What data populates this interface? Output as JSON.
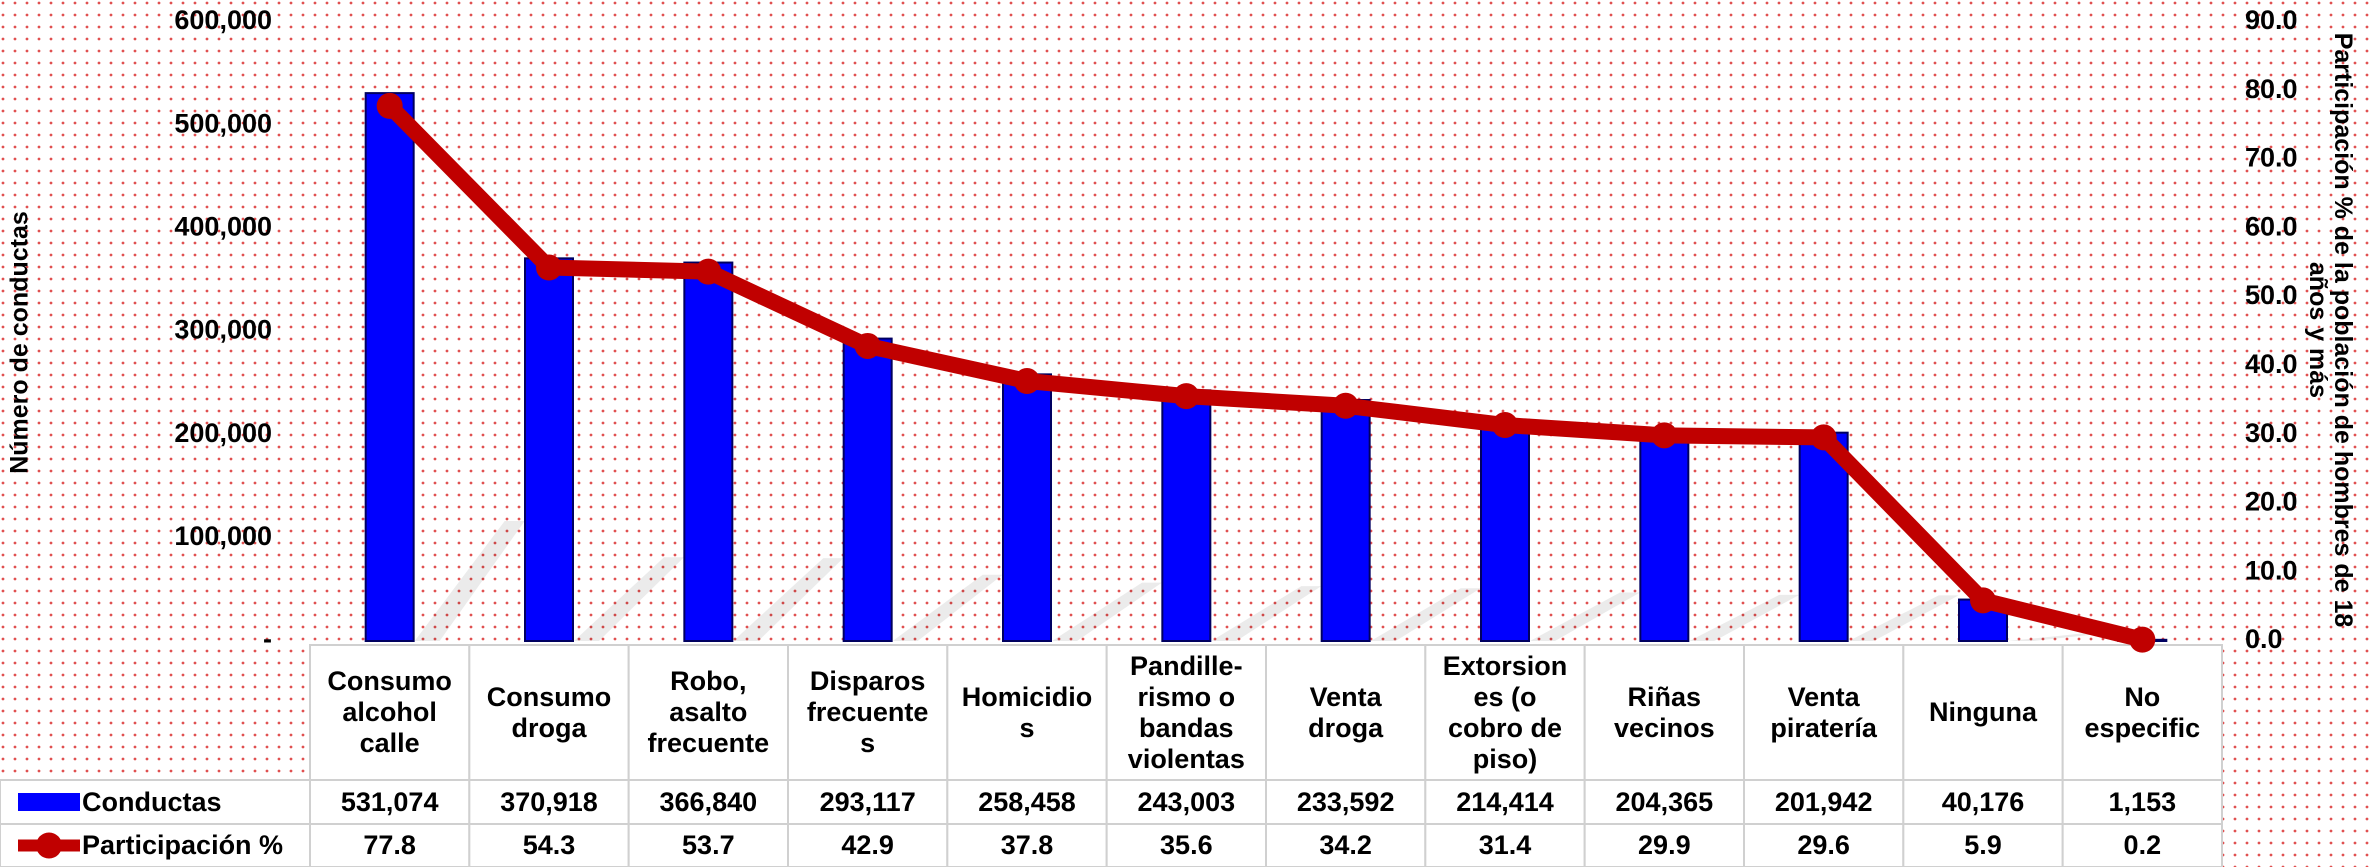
{
  "chart_data": {
    "type": "bar-line",
    "ylabel": "Número de conductas",
    "y2label": "Participación % de la población de hombres de 18\naños y más",
    "categories": [
      "Consumo\nalcohol\ncalle",
      "Consumo\ndroga",
      "Robo,\nasalto\nfrecuente",
      "Disparos\nfrecuente\ns",
      "Homicidio\ns",
      "Pandille-\nrismo o\nbandas\nviolentas",
      "Venta\ndroga",
      "Extorsion\nes (o\ncobro de\npiso)",
      "Riñas\nvecinos",
      "Venta\npiratería",
      "Ninguna",
      "No\nespecific"
    ],
    "series": [
      {
        "name": "Conductas",
        "type": "bar",
        "color": "#0000ff",
        "values": [
          531074,
          370918,
          366840,
          293117,
          258458,
          243003,
          233592,
          214414,
          204365,
          201942,
          40176,
          1153
        ],
        "value_labels": [
          "531,074",
          "370,918",
          "366,840",
          "293,117",
          "258,458",
          "243,003",
          "233,592",
          "214,414",
          "204,365",
          "201,942",
          "40,176",
          "1,153"
        ]
      },
      {
        "name": "Participación %",
        "type": "line",
        "axis": "y2",
        "color": "#c00000",
        "values": [
          77.8,
          54.3,
          53.7,
          42.9,
          37.8,
          35.6,
          34.2,
          31.4,
          29.9,
          29.6,
          5.9,
          0.2
        ]
      }
    ],
    "ylim": [
      0,
      600000
    ],
    "yticks": [
      {
        "value": 0,
        "label": "-"
      },
      {
        "value": 100000,
        "label": "100,000"
      },
      {
        "value": 200000,
        "label": "200,000"
      },
      {
        "value": 300000,
        "label": "300,000"
      },
      {
        "value": 400000,
        "label": "400,000"
      },
      {
        "value": 500000,
        "label": "500,000"
      },
      {
        "value": 600000,
        "label": "600,000"
      }
    ],
    "y2lim": [
      0,
      90
    ],
    "y2ticks": [
      {
        "value": 0,
        "label": "0.0"
      },
      {
        "value": 10,
        "label": "10.0"
      },
      {
        "value": 20,
        "label": "20.0"
      },
      {
        "value": 30,
        "label": "30.0"
      },
      {
        "value": 40,
        "label": "40.0"
      },
      {
        "value": 50,
        "label": "50.0"
      },
      {
        "value": 60,
        "label": "60.0"
      },
      {
        "value": 70,
        "label": "70.0"
      },
      {
        "value": 80,
        "label": "80.0"
      },
      {
        "value": 90,
        "label": "90.0"
      }
    ]
  }
}
